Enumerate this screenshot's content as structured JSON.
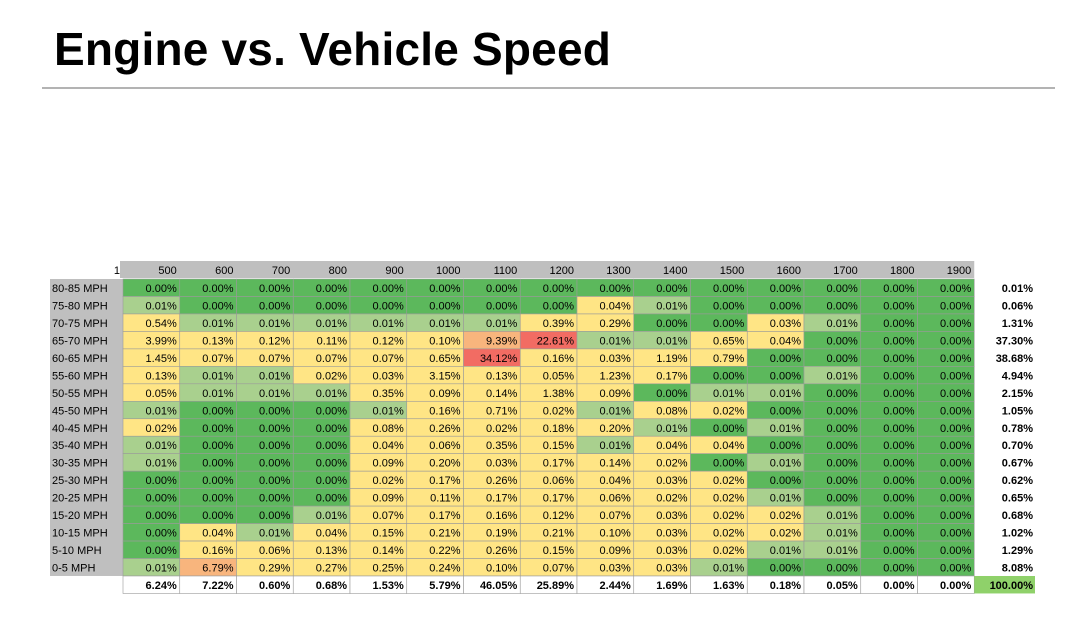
{
  "page": {
    "title": "Engine vs. Vehicle Speed"
  },
  "chart_data": {
    "type": "heatmap",
    "title": "Engine vs. Vehicle Speed",
    "corner_label": "1",
    "columns": [
      "500",
      "600",
      "700",
      "800",
      "900",
      "1000",
      "1100",
      "1200",
      "1300",
      "1400",
      "1500",
      "1600",
      "1700",
      "1800",
      "1900"
    ],
    "rows": [
      "80-85 MPH",
      "75-80 MPH",
      "70-75 MPH",
      "65-70 MPH",
      "60-65 MPH",
      "55-60 MPH",
      "50-55 MPH",
      "45-50 MPH",
      "40-45 MPH",
      "35-40 MPH",
      "30-35 MPH",
      "25-30 MPH",
      "20-25 MPH",
      "15-20 MPH",
      "10-15 MPH",
      "5-10 MPH",
      "0-5 MPH"
    ],
    "values": [
      [
        0.0,
        0.0,
        0.0,
        0.0,
        0.0,
        0.0,
        0.0,
        0.0,
        0.0,
        0.0,
        0.0,
        0.0,
        0.0,
        0.0,
        0.0
      ],
      [
        0.01,
        0.0,
        0.0,
        0.0,
        0.0,
        0.0,
        0.0,
        0.0,
        0.04,
        0.01,
        0.0,
        0.0,
        0.0,
        0.0,
        0.0
      ],
      [
        0.54,
        0.01,
        0.01,
        0.01,
        0.01,
        0.01,
        0.01,
        0.39,
        0.29,
        0.0,
        0.0,
        0.03,
        0.01,
        0.0,
        0.0
      ],
      [
        3.99,
        0.13,
        0.12,
        0.11,
        0.12,
        0.1,
        9.39,
        22.61,
        0.01,
        0.01,
        0.65,
        0.04,
        0.0,
        0.0,
        0.0
      ],
      [
        1.45,
        0.07,
        0.07,
        0.07,
        0.07,
        0.65,
        34.12,
        0.16,
        0.03,
        1.19,
        0.79,
        0.0,
        0.0,
        0.0,
        0.0
      ],
      [
        0.13,
        0.01,
        0.01,
        0.02,
        0.03,
        3.15,
        0.13,
        0.05,
        1.23,
        0.17,
        0.0,
        0.0,
        0.01,
        0.0,
        0.0
      ],
      [
        0.05,
        0.01,
        0.01,
        0.01,
        0.35,
        0.09,
        0.14,
        1.38,
        0.09,
        0.0,
        0.01,
        0.01,
        0.0,
        0.0,
        0.0
      ],
      [
        0.01,
        0.0,
        0.0,
        0.0,
        0.01,
        0.16,
        0.71,
        0.02,
        0.01,
        0.08,
        0.02,
        0.0,
        0.0,
        0.0,
        0.0
      ],
      [
        0.02,
        0.0,
        0.0,
        0.0,
        0.08,
        0.26,
        0.02,
        0.18,
        0.2,
        0.01,
        0.0,
        0.01,
        0.0,
        0.0,
        0.0
      ],
      [
        0.01,
        0.0,
        0.0,
        0.0,
        0.04,
        0.06,
        0.35,
        0.15,
        0.01,
        0.04,
        0.04,
        0.0,
        0.0,
        0.0,
        0.0
      ],
      [
        0.01,
        0.0,
        0.0,
        0.0,
        0.09,
        0.2,
        0.03,
        0.17,
        0.14,
        0.02,
        0.0,
        0.01,
        0.0,
        0.0,
        0.0
      ],
      [
        0.0,
        0.0,
        0.0,
        0.0,
        0.02,
        0.17,
        0.26,
        0.06,
        0.04,
        0.03,
        0.02,
        0.0,
        0.0,
        0.0,
        0.0
      ],
      [
        0.0,
        0.0,
        0.0,
        0.0,
        0.09,
        0.11,
        0.17,
        0.17,
        0.06,
        0.02,
        0.02,
        0.01,
        0.0,
        0.0,
        0.0
      ],
      [
        0.0,
        0.0,
        0.0,
        0.01,
        0.07,
        0.17,
        0.16,
        0.12,
        0.07,
        0.03,
        0.02,
        0.02,
        0.01,
        0.0,
        0.0
      ],
      [
        0.0,
        0.04,
        0.01,
        0.04,
        0.15,
        0.21,
        0.19,
        0.21,
        0.1,
        0.03,
        0.02,
        0.02,
        0.01,
        0.0,
        0.0
      ],
      [
        0.0,
        0.16,
        0.06,
        0.13,
        0.14,
        0.22,
        0.26,
        0.15,
        0.09,
        0.03,
        0.02,
        0.01,
        0.01,
        0.0,
        0.0
      ],
      [
        0.01,
        6.79,
        0.29,
        0.27,
        0.25,
        0.24,
        0.1,
        0.07,
        0.03,
        0.03,
        0.01,
        0.0,
        0.0,
        0.0,
        0.0
      ]
    ],
    "row_totals": [
      0.01,
      0.06,
      1.31,
      37.3,
      38.68,
      4.94,
      2.15,
      1.05,
      0.78,
      0.7,
      0.67,
      0.62,
      0.65,
      0.68,
      1.02,
      1.29,
      8.08
    ],
    "column_totals": [
      6.24,
      7.22,
      0.6,
      0.68,
      1.53,
      5.79,
      46.05,
      25.89,
      2.44,
      1.69,
      1.63,
      0.18,
      0.05,
      0.0,
      0.0
    ],
    "grand_total": 100.0,
    "unit": "%",
    "colors": {
      "header_fill": "#bfbfbf",
      "zero_green": "#5cb85c",
      "low_green": "#a9d08e",
      "yellow": "#ffe585",
      "orange": "#f8b57d",
      "red": "#f26c63",
      "grand_total_fill": "#8fd16a",
      "gridline": "#9a9a9a"
    }
  }
}
